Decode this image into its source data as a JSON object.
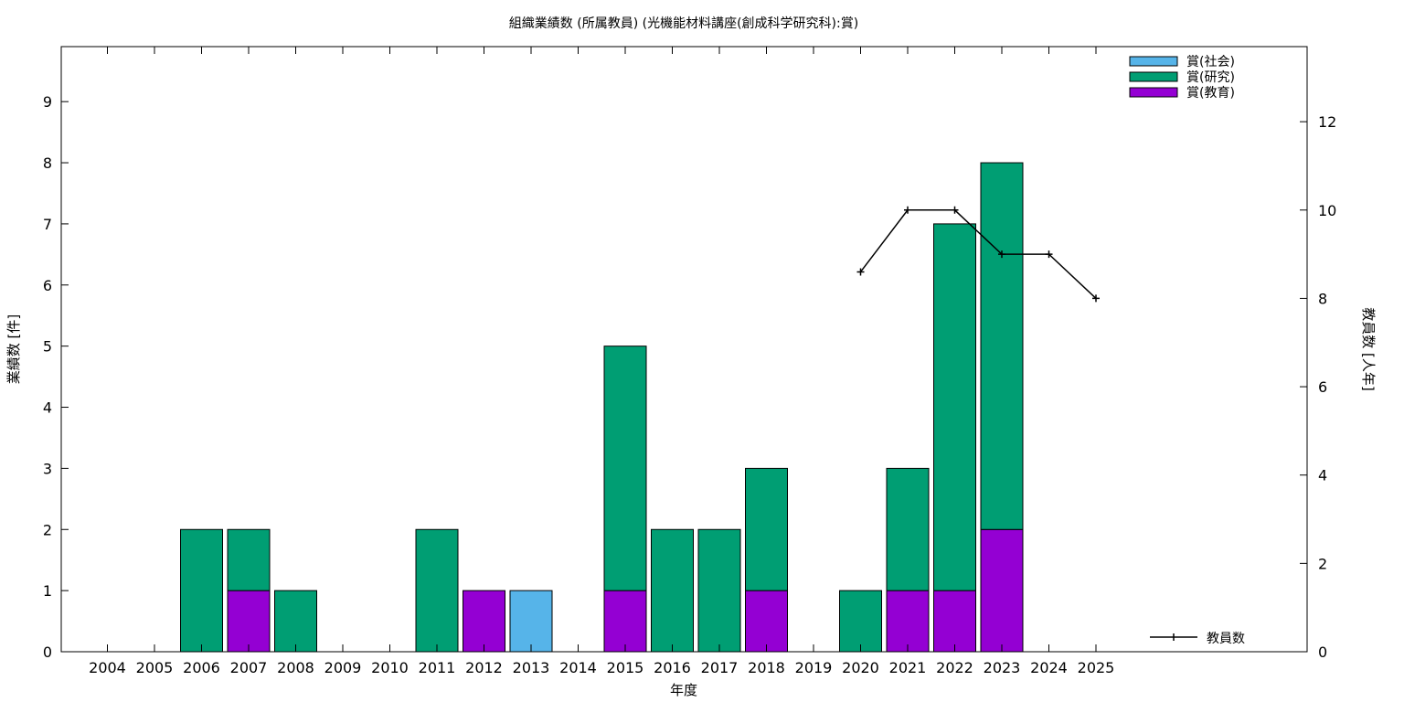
{
  "chart_data": {
    "type": "bar",
    "title": "組織業績数 (所属教員) (光機能材料講座(創成科学研究科):賞)",
    "xlabel": "年度",
    "ylabel": "業績数 [件]",
    "y2label": "教員数 [人年]",
    "stacked": true,
    "categories": [
      "2004",
      "2005",
      "2006",
      "2007",
      "2008",
      "2009",
      "2010",
      "2011",
      "2012",
      "2013",
      "2014",
      "2015",
      "2016",
      "2017",
      "2018",
      "2019",
      "2020",
      "2021",
      "2022",
      "2023",
      "2024",
      "2025"
    ],
    "series": [
      {
        "name": "賞(社会)",
        "color": "#56b4e9",
        "values": [
          0,
          0,
          0,
          0,
          0,
          0,
          0,
          0,
          0,
          1,
          0,
          0,
          0,
          0,
          0,
          0,
          0,
          0,
          0,
          0,
          0,
          0
        ]
      },
      {
        "name": "賞(研究)",
        "color": "#009e73",
        "values": [
          0,
          0,
          2,
          1,
          1,
          0,
          0,
          2,
          0,
          0,
          0,
          4,
          2,
          2,
          2,
          0,
          1,
          2,
          6,
          6,
          0,
          0
        ]
      },
      {
        "name": "賞(教育)",
        "color": "#9400d3",
        "values": [
          0,
          0,
          0,
          1,
          0,
          0,
          0,
          0,
          1,
          0,
          0,
          1,
          0,
          0,
          1,
          0,
          0,
          1,
          1,
          2,
          0,
          0
        ]
      }
    ],
    "stack_order": [
      "賞(教育)",
      "賞(社会)",
      "賞(研究)"
    ],
    "line_series": {
      "name": "教員数",
      "color": "#000000",
      "axis": "right",
      "x": [
        "2020",
        "2021",
        "2022",
        "2023",
        "2024",
        "2025"
      ],
      "values": [
        8.6,
        10,
        10,
        9,
        9,
        8
      ]
    },
    "ylim": [
      0,
      9.9
    ],
    "yticks": [
      0,
      1,
      2,
      3,
      4,
      5,
      6,
      7,
      8,
      9
    ],
    "y2lim": [
      0,
      13.7
    ],
    "y2ticks": [
      0,
      2,
      4,
      6,
      8,
      10,
      12
    ],
    "legend_position": "top-right",
    "line_legend_position": "bottom-right",
    "grid": false
  }
}
